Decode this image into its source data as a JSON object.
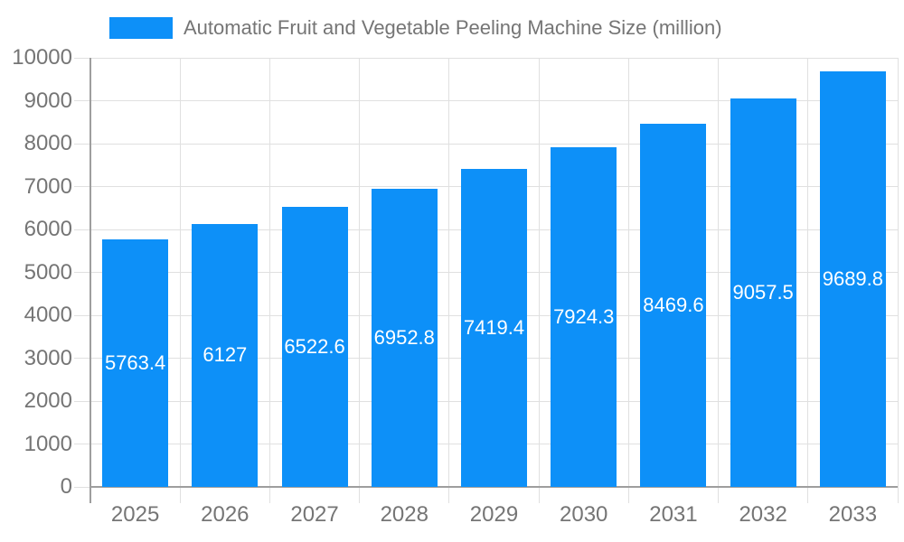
{
  "chart_data": {
    "type": "bar",
    "title": "Automatic Fruit and Vegetable Peeling Machine Size (million)",
    "categories": [
      "2025",
      "2026",
      "2027",
      "2028",
      "2029",
      "2030",
      "2031",
      "2032",
      "2033"
    ],
    "values": [
      5763.4,
      6127,
      6522.6,
      6952.8,
      7419.4,
      7924.3,
      8469.6,
      9057.5,
      9689.8
    ],
    "value_labels": [
      "5763.4",
      "6127",
      "6522.6",
      "6952.8",
      "7419.4",
      "7924.3",
      "8469.6",
      "9057.5",
      "9689.8"
    ],
    "xlabel": "",
    "ylabel": "",
    "ylim": [
      0,
      10000
    ],
    "y_ticks": [
      0,
      1000,
      2000,
      3000,
      4000,
      5000,
      6000,
      7000,
      8000,
      9000,
      10000
    ],
    "grid": true,
    "legend_position": "top-left",
    "colors": {
      "bar": "#0d90f8",
      "grid": "#e0e0e0",
      "axis": "#9e9e9e",
      "tick_label": "#757575",
      "title": "#757575",
      "value_label": "#ffffff",
      "background": "#ffffff"
    }
  }
}
